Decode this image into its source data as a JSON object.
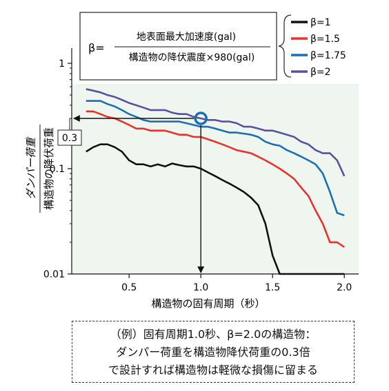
{
  "chart_data": {
    "type": "line",
    "x_scale": "linear",
    "y_scale": "log",
    "xlim": [
      0.1,
      2.1
    ],
    "ylim": [
      0.01,
      1
    ],
    "x_ticks": [
      0.5,
      1.0,
      1.5,
      2.0
    ],
    "x_tick_labels": [
      "0.5",
      "1.0",
      "1.5",
      "2.0"
    ],
    "y_ticks": [
      0.01,
      0.1,
      1
    ],
    "y_tick_labels": [
      "0.01",
      "0.1",
      "1"
    ],
    "xlabel": "構造物の固有周期（秒）",
    "ylabel_numerator": "ダンパー荷重",
    "ylabel_denominator": "構造物の降伏荷重",
    "grid": false,
    "legend_position": "top-right",
    "formula": {
      "lhs": "β=",
      "numerator": "地表面最大加速度(gal)",
      "denominator": "構造物の降伏震度×980(gal)"
    },
    "series": [
      {
        "name": "β=1",
        "color": "#111111",
        "x": [
          0.2,
          0.25,
          0.3,
          0.35,
          0.4,
          0.45,
          0.5,
          0.55,
          0.6,
          0.65,
          0.7,
          0.75,
          0.8,
          0.85,
          0.9,
          0.95,
          1.0,
          1.05,
          1.1,
          1.15,
          1.2,
          1.25,
          1.3,
          1.35,
          1.4,
          1.45,
          1.5,
          1.55,
          1.6,
          1.65,
          1.7,
          1.75,
          1.8,
          1.85,
          1.9,
          1.95,
          2.0
        ],
        "y": [
          0.145,
          0.16,
          0.17,
          0.17,
          0.16,
          0.145,
          0.12,
          0.11,
          0.11,
          0.105,
          0.11,
          0.105,
          0.112,
          0.108,
          0.105,
          0.105,
          0.1,
          0.092,
          0.085,
          0.078,
          0.072,
          0.066,
          0.06,
          0.053,
          0.045,
          0.03,
          0.015,
          0.01,
          0.01,
          0.01,
          0.01,
          0.01,
          0.01,
          0.01,
          0.01,
          0.01,
          0.01
        ]
      },
      {
        "name": "β=1.5",
        "color": "#e8322a",
        "x": [
          0.2,
          0.25,
          0.3,
          0.35,
          0.4,
          0.45,
          0.5,
          0.55,
          0.6,
          0.65,
          0.7,
          0.75,
          0.8,
          0.85,
          0.9,
          0.95,
          1.0,
          1.05,
          1.1,
          1.15,
          1.2,
          1.25,
          1.3,
          1.35,
          1.4,
          1.45,
          1.5,
          1.55,
          1.6,
          1.65,
          1.7,
          1.75,
          1.8,
          1.85,
          1.9,
          1.95,
          2.0
        ],
        "y": [
          0.35,
          0.35,
          0.33,
          0.31,
          0.3,
          0.28,
          0.26,
          0.24,
          0.24,
          0.23,
          0.23,
          0.23,
          0.22,
          0.21,
          0.21,
          0.2,
          0.2,
          0.19,
          0.18,
          0.17,
          0.16,
          0.15,
          0.145,
          0.14,
          0.13,
          0.12,
          0.11,
          0.1,
          0.09,
          0.08,
          0.066,
          0.055,
          0.04,
          0.03,
          0.02,
          0.02,
          0.018
        ]
      },
      {
        "name": "β=1.75",
        "color": "#1a6fb5",
        "x": [
          0.2,
          0.25,
          0.3,
          0.35,
          0.4,
          0.45,
          0.5,
          0.55,
          0.6,
          0.65,
          0.7,
          0.75,
          0.8,
          0.85,
          0.9,
          0.95,
          1.0,
          1.05,
          1.1,
          1.15,
          1.2,
          1.25,
          1.3,
          1.35,
          1.4,
          1.45,
          1.5,
          1.55,
          1.6,
          1.65,
          1.7,
          1.75,
          1.8,
          1.85,
          1.9,
          1.95,
          2.0
        ],
        "y": [
          0.44,
          0.44,
          0.44,
          0.41,
          0.39,
          0.36,
          0.33,
          0.31,
          0.29,
          0.28,
          0.28,
          0.28,
          0.28,
          0.28,
          0.27,
          0.26,
          0.25,
          0.25,
          0.24,
          0.23,
          0.22,
          0.22,
          0.215,
          0.21,
          0.2,
          0.18,
          0.17,
          0.165,
          0.15,
          0.14,
          0.13,
          0.12,
          0.11,
          0.09,
          0.06,
          0.038,
          0.036
        ]
      },
      {
        "name": "β=2",
        "color": "#5a4fa0",
        "x": [
          0.2,
          0.25,
          0.3,
          0.35,
          0.4,
          0.45,
          0.5,
          0.55,
          0.6,
          0.65,
          0.7,
          0.75,
          0.8,
          0.85,
          0.9,
          0.95,
          1.0,
          1.05,
          1.1,
          1.15,
          1.2,
          1.25,
          1.3,
          1.35,
          1.4,
          1.45,
          1.5,
          1.55,
          1.6,
          1.65,
          1.7,
          1.75,
          1.8,
          1.85,
          1.9,
          1.95,
          2.0
        ],
        "y": [
          0.57,
          0.55,
          0.53,
          0.5,
          0.48,
          0.45,
          0.42,
          0.4,
          0.38,
          0.36,
          0.36,
          0.36,
          0.34,
          0.33,
          0.33,
          0.31,
          0.3,
          0.29,
          0.29,
          0.28,
          0.28,
          0.27,
          0.25,
          0.25,
          0.24,
          0.23,
          0.23,
          0.22,
          0.21,
          0.2,
          0.18,
          0.17,
          0.15,
          0.14,
          0.14,
          0.12,
          0.085
        ]
      }
    ],
    "annotation": {
      "marker": {
        "x": 1.0,
        "y": 0.3,
        "color": "#1a6fb5"
      },
      "horizontal_arrow_to_y_axis": 0.3,
      "vertical_arrow_to_x_axis": 1.0,
      "callout_label": "0.3"
    }
  },
  "note": {
    "lines": [
      "（例）固有周期1.0秒、β=2.0の構造物：",
      "ダンパー荷重を構造物降伏荷重の0.3倍",
      "で設計すれば構造物は軽微な損傷に留まる"
    ]
  }
}
